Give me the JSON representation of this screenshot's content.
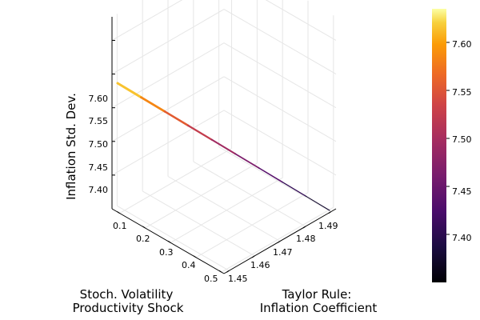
{
  "chart_data": {
    "type": "surface",
    "xlabel_line1": "Stoch. Volatility",
    "xlabel_line2": "Productivity Shock",
    "ylabel_line1": "Taylor Rule:",
    "ylabel_line2": "Inflation Coefficient",
    "zlabel": "Inflation Std. Dev.",
    "x_ticks": [
      "0.1",
      "0.2",
      "0.3",
      "0.4",
      "0.5"
    ],
    "y_ticks": [
      "1.45",
      "1.46",
      "1.47",
      "1.48",
      "1.49"
    ],
    "z_ticks": [
      "7.40",
      "7.45",
      "7.50",
      "7.55",
      "7.60"
    ],
    "colorbar_ticks": [
      "7.40",
      "7.45",
      "7.50",
      "7.55",
      "7.60"
    ],
    "xlim": [
      0.07,
      0.51
    ],
    "ylim": [
      1.448,
      1.492
    ],
    "zlim": [
      7.35,
      7.635
    ],
    "colormap": "inferno",
    "grid": true,
    "surface_line": [
      {
        "z": 7.63
      },
      {
        "z": 7.6
      },
      {
        "z": 7.57
      },
      {
        "z": 7.54
      },
      {
        "z": 7.51
      },
      {
        "z": 7.48
      },
      {
        "z": 7.45
      },
      {
        "z": 7.42
      },
      {
        "z": 7.39
      },
      {
        "z": 7.36
      }
    ]
  }
}
